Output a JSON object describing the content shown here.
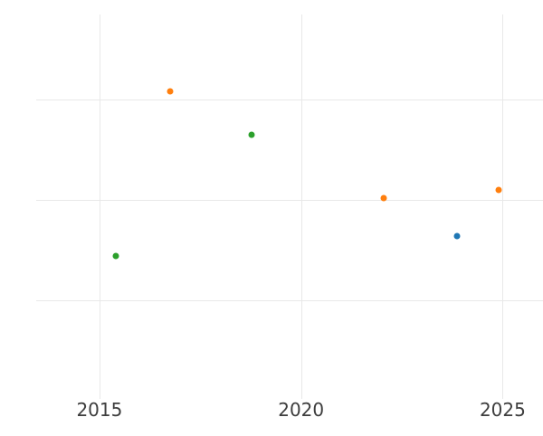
{
  "chart_data": {
    "type": "scatter",
    "title": "",
    "xlabel": "",
    "ylabel": "",
    "grid": true,
    "legend": "none",
    "y_axis_labels_visible": false,
    "x_tick_labels": [
      "2015",
      "2020",
      "2025"
    ],
    "x_tick_values": [
      2015,
      2020,
      2025
    ],
    "x_range": [
      2013.43,
      2026.9
    ],
    "y_range": [
      0.02,
      3.85
    ],
    "y_gridline_values": [
      1,
      2,
      3
    ],
    "marker_size_px": 7,
    "series": [
      {
        "name": "blue",
        "color": "#1f77b4",
        "points": [
          {
            "x": 2023.87,
            "y": 1.64
          }
        ]
      },
      {
        "name": "orange",
        "color": "#ff7f0e",
        "points": [
          {
            "x": 2016.75,
            "y": 3.08
          },
          {
            "x": 2022.06,
            "y": 2.02
          },
          {
            "x": 2024.9,
            "y": 2.1
          }
        ]
      },
      {
        "name": "green",
        "color": "#2ca02c",
        "points": [
          {
            "x": 2015.41,
            "y": 1.44
          },
          {
            "x": 2018.78,
            "y": 2.65
          }
        ]
      }
    ]
  },
  "styles": {
    "background_color": "#ffffff",
    "gridline_color": "#e8e8e8",
    "tick_label_color": "#3d3d3d"
  }
}
